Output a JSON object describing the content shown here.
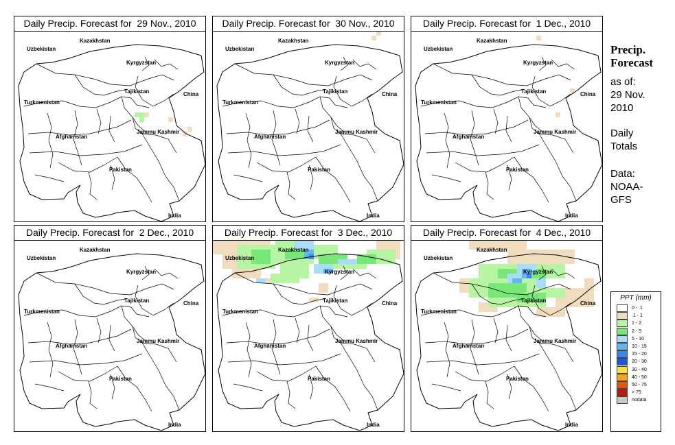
{
  "panels": [
    {
      "title": "Daily Precip. Forecast for  29 Nov., 2010",
      "day": 0
    },
    {
      "title": "Daily Precip. Forecast for  30 Nov., 2010",
      "day": 1
    },
    {
      "title": "Daily Precip. Forecast for  1 Dec., 2010",
      "day": 2
    },
    {
      "title": "Daily Precip. Forecast for  2 Dec., 2010",
      "day": 3
    },
    {
      "title": "Daily Precip. Forecast for  3 Dec., 2010",
      "day": 4
    },
    {
      "title": "Daily Precip. Forecast for  4 Dec., 2010",
      "day": 5
    }
  ],
  "map_labels": {
    "uzbekistan": "Uzbekistan",
    "kazakhstan": "Kazakhstan",
    "kyrgyzstan": "Kyrgyzstan",
    "tajikistan": "Tajikistan",
    "turkmenistan": "Turkmenistan",
    "china": "China",
    "afghanistan": "Afghanistan",
    "jammu_kashmir": "Jammu Kashmir",
    "pakistan": "Pakistan",
    "india": "India"
  },
  "side": {
    "heading1": "Precip.",
    "heading2": "Forecast",
    "asof": "as of:",
    "date1": "29 Nov.",
    "date2": "2010",
    "daily": "Daily",
    "totals": "Totals",
    "data": "Data:",
    "src1": "NOAA-",
    "src2": "GFS"
  },
  "legend": {
    "title": "PPT (mm)",
    "items": [
      {
        "label": "0 - .1",
        "color": "#ffffff"
      },
      {
        "label": ".1 - 1",
        "color": "#f2dcbe"
      },
      {
        "label": "1 - 2",
        "color": "#b7f5a4"
      },
      {
        "label": "2 - 5",
        "color": "#78e878"
      },
      {
        "label": "5 - 10",
        "color": "#a8dcf8"
      },
      {
        "label": "10 - 15",
        "color": "#62b4f2"
      },
      {
        "label": "15 - 20",
        "color": "#3a86ea"
      },
      {
        "label": "20 - 30",
        "color": "#1c58d8"
      },
      {
        "label": "30 - 40",
        "color": "#f8e040"
      },
      {
        "label": "40 - 50",
        "color": "#f7a51c"
      },
      {
        "label": "50 - 75",
        "color": "#e65510"
      },
      {
        "label": "> 75",
        "color": "#b41c0c"
      },
      {
        "label": "nodata",
        "color": "#c8c8c8"
      }
    ]
  }
}
